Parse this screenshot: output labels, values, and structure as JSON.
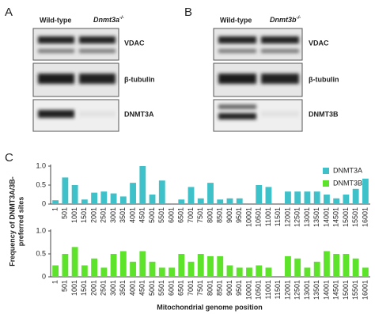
{
  "panels": [
    {
      "letter": "A",
      "wildtype": "Wild-type",
      "mutant": {
        "gene": "Dnmt3a",
        "genotype": "-/-"
      },
      "rows": [
        "VDAC",
        "β-tubulin",
        "DNMT3A"
      ]
    },
    {
      "letter": "B",
      "wildtype": "Wild-type",
      "mutant": {
        "gene": "Dnmt3b",
        "genotype": "-/-"
      },
      "rows": [
        "VDAC",
        "β-tubulin",
        "DNMT3B"
      ]
    }
  ],
  "chart_data": {
    "type": "bar",
    "letter": "C",
    "ylabel": [
      "Frequency of DNMT3A/3B-",
      "preferred sites"
    ],
    "xlabel": "Mitochondrial genome position",
    "categories": [
      "1",
      "501",
      "1001",
      "1501",
      "2001",
      "2501",
      "3001",
      "3501",
      "4001",
      "4501",
      "5001",
      "5501",
      "6001",
      "6501",
      "7001",
      "7501",
      "8001",
      "8501",
      "9001",
      "9501",
      "10001",
      "10501",
      "11001",
      "11501",
      "12001",
      "12501",
      "13001",
      "13501",
      "14001",
      "14501",
      "15001",
      "15501",
      "16001"
    ],
    "series": [
      {
        "name": "DNMT3A",
        "color": "#3fc1c9",
        "values": [
          0.1,
          0.7,
          0.5,
          0.12,
          0.3,
          0.33,
          0.28,
          0.2,
          0.56,
          1.0,
          0.25,
          0.62,
          0,
          0.12,
          0.45,
          0.15,
          0.56,
          0.12,
          0.15,
          0.15,
          0,
          0.5,
          0.45,
          0,
          0.33,
          0.33,
          0.33,
          0.33,
          0.25,
          0.15,
          0.25,
          0.4,
          0.67
        ]
      },
      {
        "name": "DNMT3B",
        "color": "#5ee32b",
        "values": [
          0.25,
          0.5,
          0.65,
          0.25,
          0.4,
          0.2,
          0.5,
          0.56,
          0.33,
          0.56,
          0.33,
          0.2,
          0.2,
          0.5,
          0.33,
          0.5,
          0.45,
          0.45,
          0.25,
          0.2,
          0.2,
          0.25,
          0.2,
          0,
          0.45,
          0.4,
          0.2,
          0.33,
          0.56,
          0.5,
          0.5,
          0.4,
          0.2
        ]
      }
    ],
    "ylim": [
      0,
      1
    ],
    "yticks": [
      0,
      0.5,
      {
        "value": 1,
        "label": "1.0"
      }
    ]
  }
}
